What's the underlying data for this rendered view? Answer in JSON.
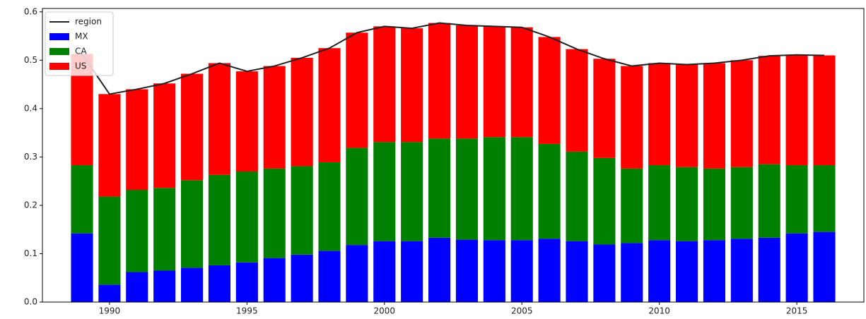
{
  "chart_data": {
    "type": "bar",
    "stacked": true,
    "x": [
      1989,
      1990,
      1991,
      1992,
      1993,
      1994,
      1995,
      1996,
      1997,
      1998,
      1999,
      2000,
      2001,
      2002,
      2003,
      2004,
      2005,
      2006,
      2007,
      2008,
      2009,
      2010,
      2011,
      2012,
      2013,
      2014,
      2015,
      2016
    ],
    "series": [
      {
        "name": "region",
        "type": "line",
        "color": "#222222",
        "values": [
          0.513,
          0.43,
          0.44,
          0.452,
          0.472,
          0.494,
          0.477,
          0.488,
          0.505,
          0.525,
          0.557,
          0.57,
          0.566,
          0.577,
          0.572,
          0.57,
          0.568,
          0.548,
          0.523,
          0.503,
          0.488,
          0.494,
          0.491,
          0.494,
          0.5,
          0.509,
          0.511,
          0.51
        ]
      },
      {
        "name": "MX",
        "color": "#0000ff",
        "values": [
          0.142,
          0.036,
          0.062,
          0.065,
          0.071,
          0.076,
          0.082,
          0.091,
          0.098,
          0.106,
          0.118,
          0.126,
          0.126,
          0.133,
          0.129,
          0.128,
          0.128,
          0.131,
          0.126,
          0.119,
          0.122,
          0.128,
          0.126,
          0.128,
          0.131,
          0.133,
          0.142,
          0.145
        ]
      },
      {
        "name": "CA",
        "color": "#008000",
        "values": [
          0.141,
          0.182,
          0.17,
          0.171,
          0.181,
          0.187,
          0.188,
          0.185,
          0.183,
          0.183,
          0.201,
          0.205,
          0.205,
          0.205,
          0.209,
          0.213,
          0.213,
          0.196,
          0.185,
          0.179,
          0.154,
          0.155,
          0.153,
          0.148,
          0.148,
          0.152,
          0.141,
          0.138
        ]
      },
      {
        "name": "US",
        "color": "#ff0000",
        "values": [
          0.23,
          0.212,
          0.208,
          0.216,
          0.22,
          0.231,
          0.207,
          0.212,
          0.224,
          0.236,
          0.238,
          0.239,
          0.235,
          0.239,
          0.234,
          0.229,
          0.227,
          0.221,
          0.212,
          0.205,
          0.212,
          0.211,
          0.212,
          0.218,
          0.221,
          0.224,
          0.228,
          0.227
        ]
      }
    ],
    "xlim": [
      1987.56,
      2017.44
    ],
    "xticks": [
      1990,
      1995,
      2000,
      2005,
      2010,
      2015
    ],
    "ylim": [
      0,
      0.607
    ],
    "yticks": [
      {
        "value": 0,
        "label": "0.0"
      },
      0.1,
      0.2,
      0.3,
      0.4,
      0.5,
      0.6
    ],
    "legend": "upper left",
    "grid": false
  }
}
